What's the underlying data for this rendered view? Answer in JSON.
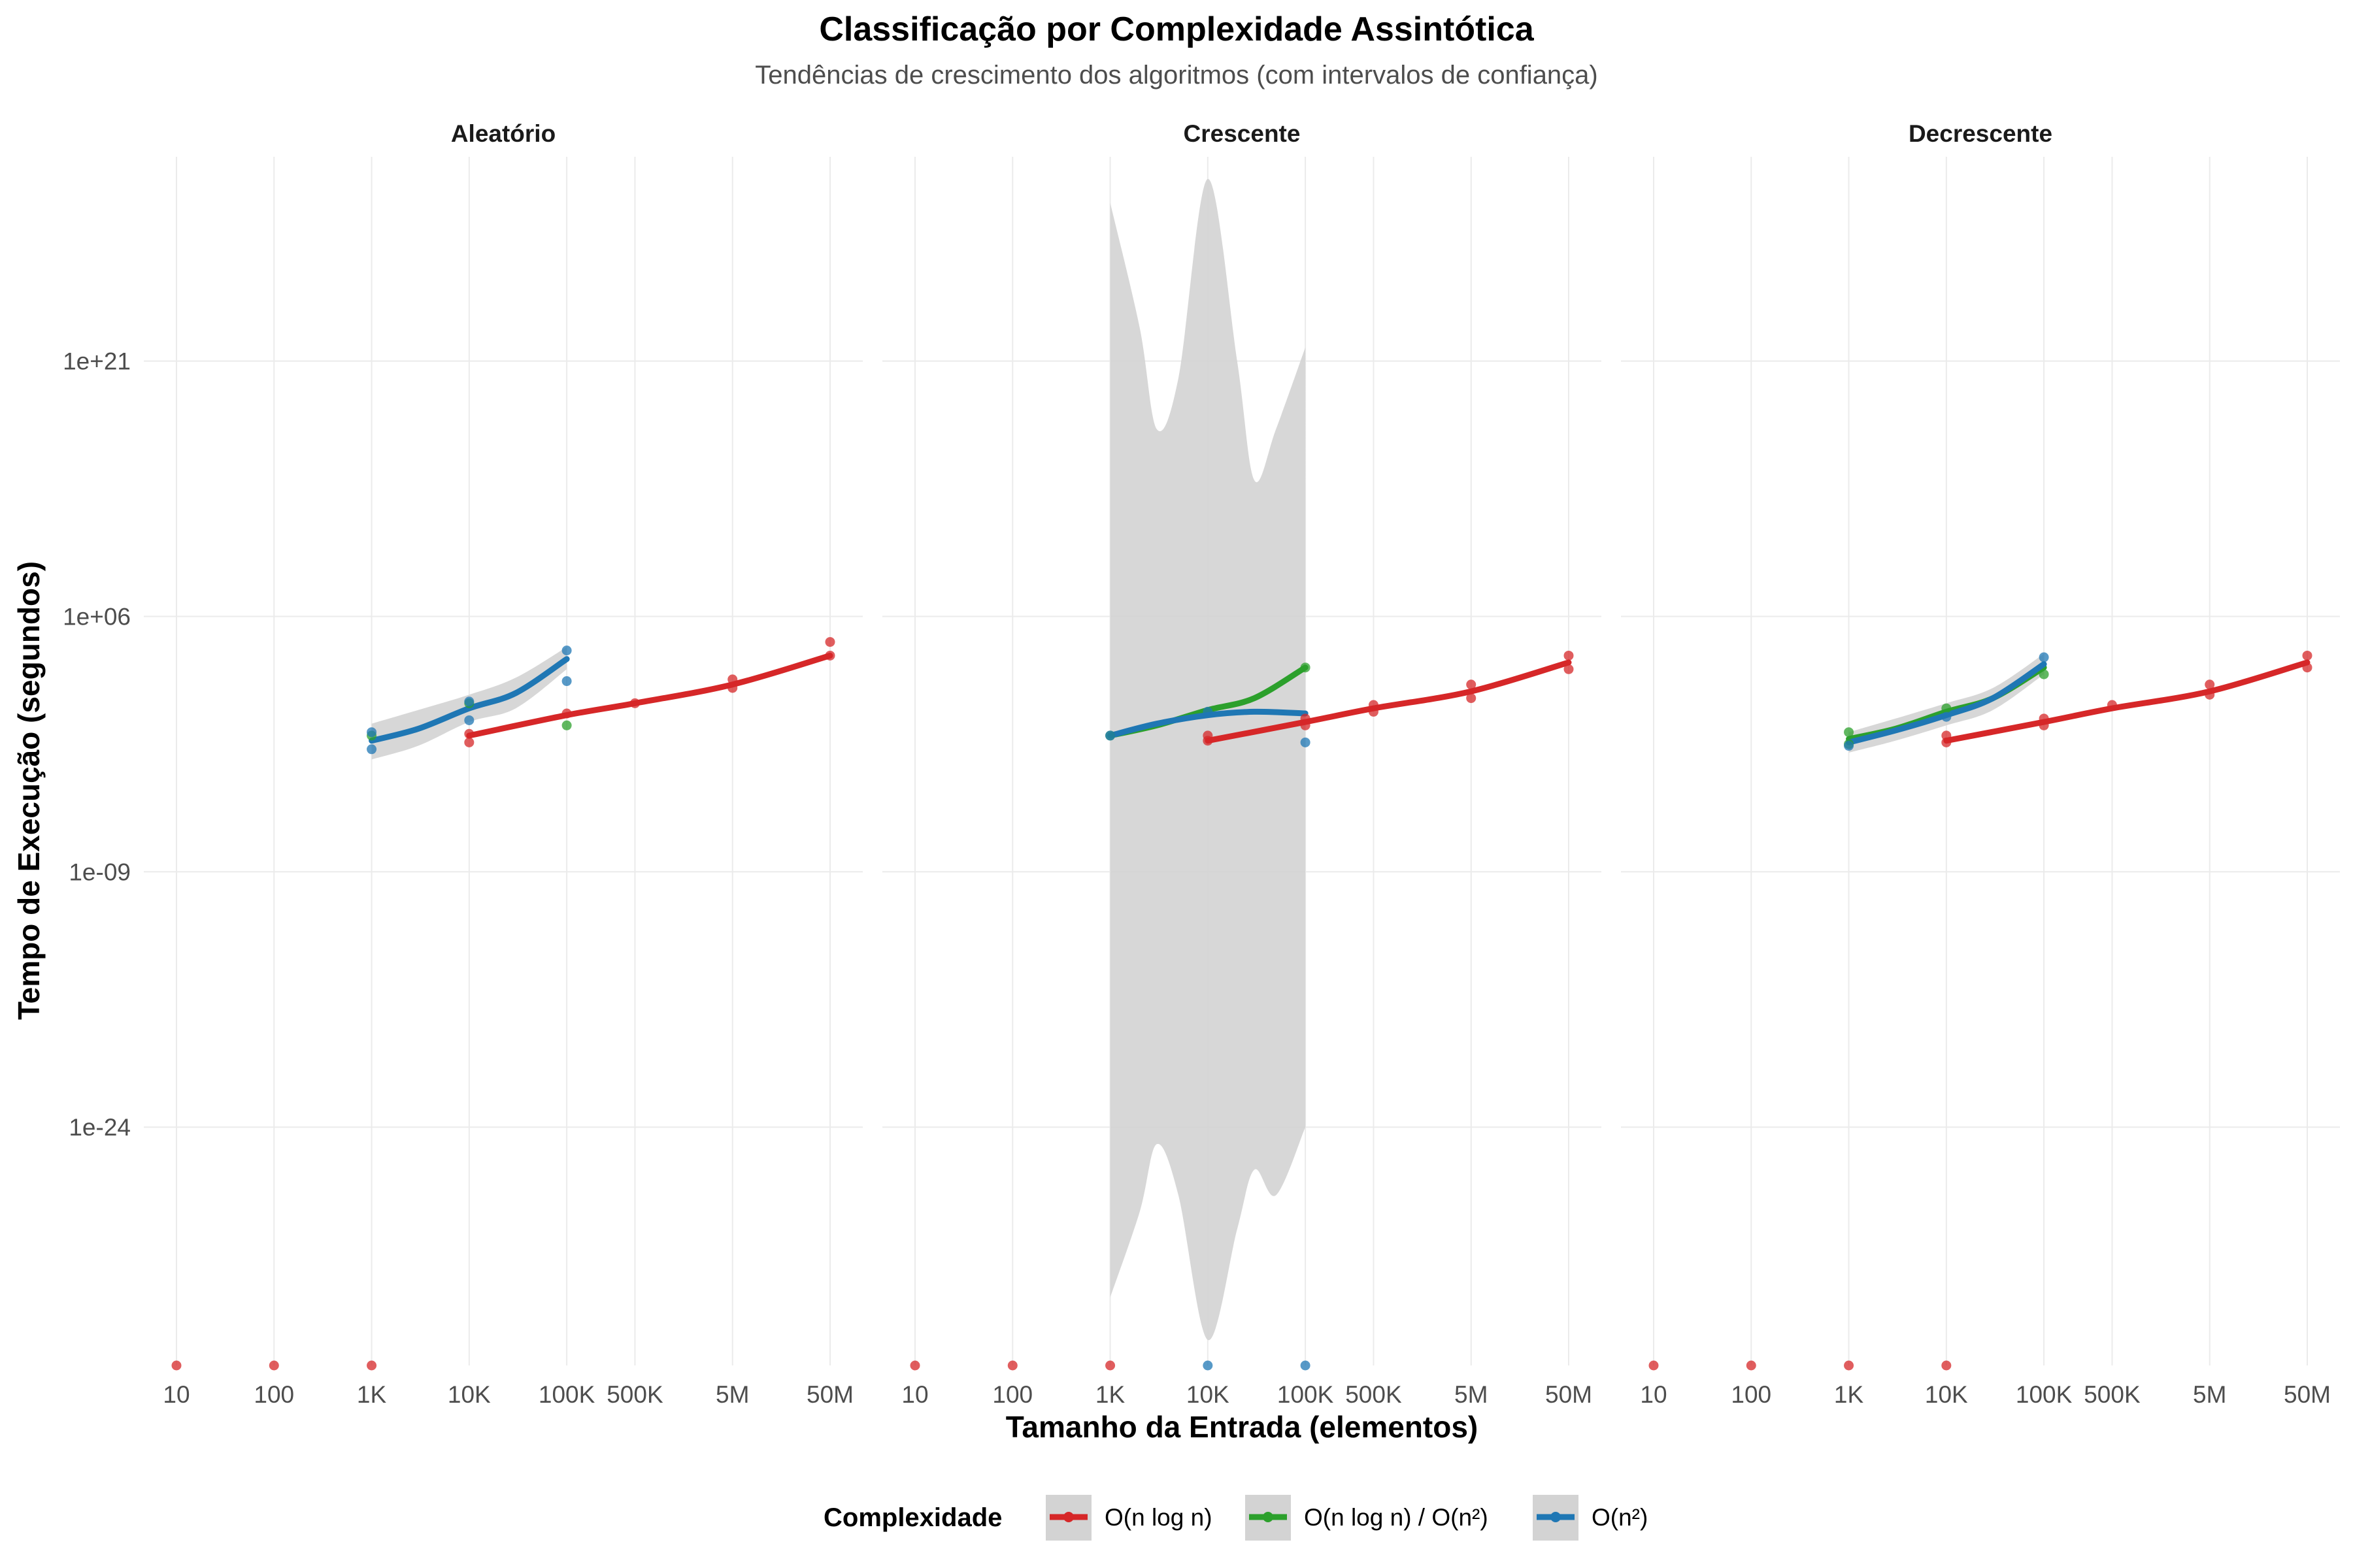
{
  "chart_data": {
    "type": "line",
    "title": "Classificação por Complexidade Assintótica",
    "subtitle": "Tendências de crescimento dos algoritmos (com intervalos de confiança)",
    "xlabel": "Tamanho da Entrada (elementos)",
    "ylabel": "Tempo de Execução (segundos)",
    "x_scale": "log10",
    "y_scale": "log10",
    "xlim": [
      10,
      50000000
    ],
    "ylim_log10": [
      -38,
      33
    ],
    "x_ticks": [
      {
        "value": 10,
        "label": "10"
      },
      {
        "value": 100,
        "label": "100"
      },
      {
        "value": 1000,
        "label": "1K"
      },
      {
        "value": 10000,
        "label": "10K"
      },
      {
        "value": 100000,
        "label": "100K"
      },
      {
        "value": 500000,
        "label": "500K"
      },
      {
        "value": 5000000,
        "label": "5M"
      },
      {
        "value": 50000000,
        "label": "50M"
      }
    ],
    "y_ticks": [
      {
        "log10": 21,
        "label": "1e+21"
      },
      {
        "log10": 6,
        "label": "1e+06"
      },
      {
        "log10": -9,
        "label": "1e-09"
      },
      {
        "log10": -24,
        "label": "1e-24"
      }
    ],
    "grid": true,
    "legend_title": "Complexidade",
    "legend_position": "bottom",
    "legend": [
      {
        "key": "nlogn",
        "label": "O(n log n)",
        "color": "#d62728"
      },
      {
        "key": "mixed",
        "label": "O(n log n) / O(n²)",
        "color": "#2ca02c"
      },
      {
        "key": "n2",
        "label": "O(n²)",
        "color": "#1f77b4"
      }
    ],
    "ribbon_color": "#d3d3d3",
    "panels": [
      {
        "name": "Aleatório",
        "series": [
          {
            "key": "nlogn",
            "line": [
              [
                10000,
                -1.0
              ],
              [
                100000,
                0.2
              ],
              [
                500000,
                0.9
              ],
              [
                5000000,
                2.0
              ],
              [
                50000000,
                3.7
              ]
            ],
            "points": [
              [
                10000,
                -0.9
              ],
              [
                10000,
                -1.4
              ],
              [
                100000,
                0.3
              ],
              [
                500000,
                0.9
              ],
              [
                5000000,
                2.3
              ],
              [
                5000000,
                1.8
              ],
              [
                50000000,
                4.5
              ],
              [
                50000000,
                3.7
              ]
            ]
          },
          {
            "key": "mixed",
            "line": [],
            "points": [
              [
                1000,
                -1.0
              ],
              [
                10000,
                0.9
              ],
              [
                100000,
                -0.4
              ]
            ]
          },
          {
            "key": "n2",
            "line": [
              [
                1000,
                -1.3
              ],
              [
                3000,
                -0.6
              ],
              [
                10000,
                0.6
              ],
              [
                30000,
                1.5
              ],
              [
                100000,
                3.5
              ]
            ],
            "ribbon": {
              "x": [
                1000,
                3000,
                10000,
                30000,
                100000
              ],
              "upper": [
                -0.3,
                0.5,
                1.4,
                2.4,
                4.2
              ],
              "lower": [
                -2.4,
                -1.6,
                -0.2,
                0.6,
                2.9
              ]
            },
            "points": [
              [
                1000,
                -0.8
              ],
              [
                1000,
                -1.8
              ],
              [
                10000,
                1.0
              ],
              [
                10000,
                -0.1
              ],
              [
                100000,
                4.0
              ],
              [
                100000,
                2.2
              ]
            ]
          },
          {
            "key": "nlogn",
            "line": [],
            "points": [
              [
                10,
                -38
              ],
              [
                100,
                -38
              ],
              [
                1000,
                -38
              ]
            ]
          }
        ]
      },
      {
        "name": "Crescente",
        "series": [
          {
            "key": "nlogn",
            "line": [
              [
                10000,
                -1.3
              ],
              [
                100000,
                -0.2
              ],
              [
                500000,
                0.6
              ],
              [
                5000000,
                1.6
              ],
              [
                50000000,
                3.3
              ]
            ],
            "points": [
              [
                10000,
                -1.0
              ],
              [
                10000,
                -1.3
              ],
              [
                100000,
                -0.4
              ],
              [
                100000,
                0.0
              ],
              [
                500000,
                0.8
              ],
              [
                500000,
                0.4
              ],
              [
                5000000,
                2.0
              ],
              [
                5000000,
                1.2
              ],
              [
                50000000,
                3.7
              ],
              [
                50000000,
                2.9
              ]
            ]
          },
          {
            "key": "mixed",
            "line": [
              [
                1000,
                -1.0
              ],
              [
                3000,
                -0.4
              ],
              [
                10000,
                0.5
              ],
              [
                30000,
                1.2
              ],
              [
                100000,
                3.0
              ]
            ],
            "points": [
              [
                1000,
                -1.0
              ],
              [
                100000,
                3.0
              ]
            ]
          },
          {
            "key": "n2",
            "line": [
              [
                1000,
                -1.0
              ],
              [
                3000,
                -0.3
              ],
              [
                10000,
                0.2
              ],
              [
                30000,
                0.4
              ],
              [
                100000,
                0.3
              ]
            ],
            "ribbon": {
              "x": [
                1000,
                2000,
                3000,
                5000,
                10000,
                20000,
                30000,
                50000,
                100000
              ],
              "upper": [
                30.3,
                23.0,
                17.0,
                20.0,
                31.7,
                21.0,
                14.0,
                17.0,
                21.8
              ],
              "lower": [
                -34.0,
                -29.0,
                -25.0,
                -28.0,
                -36.5,
                -30.0,
                -26.5,
                -28.0,
                -24.0
              ]
            },
            "points": [
              [
                1000,
                -1.0
              ],
              [
                10000,
                0.4
              ],
              [
                100000,
                -1.4
              ]
            ]
          },
          {
            "key": "nlogn",
            "line": [],
            "points": [
              [
                10,
                -38
              ],
              [
                100,
                -38
              ],
              [
                1000,
                -38
              ]
            ]
          },
          {
            "key": "n2",
            "line": [],
            "points": [
              [
                10000,
                -38
              ],
              [
                100000,
                -38
              ]
            ]
          }
        ]
      },
      {
        "name": "Decrescente",
        "series": [
          {
            "key": "nlogn",
            "line": [
              [
                10000,
                -1.3
              ],
              [
                100000,
                -0.2
              ],
              [
                500000,
                0.6
              ],
              [
                5000000,
                1.6
              ],
              [
                50000000,
                3.3
              ]
            ],
            "points": [
              [
                10000,
                -1.0
              ],
              [
                10000,
                -1.4
              ],
              [
                100000,
                -0.4
              ],
              [
                100000,
                0.0
              ],
              [
                500000,
                0.8
              ],
              [
                5000000,
                2.0
              ],
              [
                5000000,
                1.4
              ],
              [
                50000000,
                3.7
              ],
              [
                50000000,
                3.0
              ]
            ]
          },
          {
            "key": "mixed",
            "line": [
              [
                1000,
                -1.2
              ],
              [
                3000,
                -0.6
              ],
              [
                10000,
                0.4
              ],
              [
                30000,
                1.2
              ],
              [
                100000,
                3.0
              ]
            ],
            "points": [
              [
                1000,
                -0.8
              ],
              [
                1000,
                -1.5
              ],
              [
                10000,
                0.6
              ],
              [
                100000,
                2.6
              ]
            ]
          },
          {
            "key": "n2",
            "line": [
              [
                1000,
                -1.4
              ],
              [
                3000,
                -0.7
              ],
              [
                10000,
                0.2
              ],
              [
                30000,
                1.2
              ],
              [
                100000,
                3.2
              ]
            ],
            "ribbon": {
              "x": [
                1000,
                3000,
                10000,
                30000,
                100000
              ],
              "upper": [
                -0.8,
                0.0,
                0.9,
                1.8,
                3.8
              ],
              "lower": [
                -2.0,
                -1.3,
                -0.4,
                0.5,
                2.6
              ]
            },
            "points": [
              [
                1000,
                -1.6
              ],
              [
                10000,
                0.1
              ],
              [
                100000,
                3.6
              ]
            ]
          },
          {
            "key": "nlogn",
            "line": [],
            "points": [
              [
                10,
                -38
              ],
              [
                100,
                -38
              ],
              [
                1000,
                -38
              ],
              [
                10000,
                -38
              ]
            ]
          }
        ]
      }
    ]
  }
}
